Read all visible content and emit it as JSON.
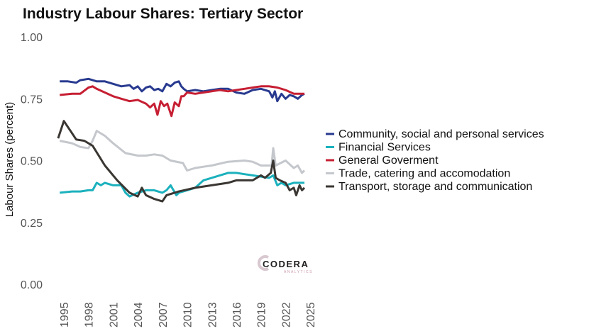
{
  "chart_data": {
    "type": "line",
    "title": "Industry Labour Shares: Tertiary Sector",
    "xlabel": "",
    "ylabel": "Labour Shares (percent)",
    "xlim": [
      1994,
      2025
    ],
    "ylim": [
      0,
      1
    ],
    "xticks": [
      "1995",
      "1998",
      "2001",
      "2004",
      "2007",
      "2010",
      "2013",
      "2016",
      "2019",
      "2022",
      "2025"
    ],
    "yticks": [
      "0.00",
      "0.25",
      "0.50",
      "0.75",
      "1.00"
    ],
    "grid": false,
    "legend_position": "right",
    "logo": "CODERA ANALYTICS",
    "series": [
      {
        "name": "Community, social and personal services",
        "color": "#283a8f",
        "x": [
          1994.5,
          1995.5,
          1996.5,
          1997,
          1998,
          1999,
          2000,
          2001,
          2002,
          2003,
          2003.5,
          2004,
          2004.5,
          2005,
          2005.5,
          2006,
          2006.5,
          2007,
          2007.5,
          2008,
          2008.5,
          2009,
          2009.3,
          2009.6,
          2010,
          2011,
          2012,
          2013,
          2014,
          2015,
          2016,
          2017,
          2018,
          2019,
          2020,
          2020.4,
          2020.7,
          2021,
          2021.5,
          2022,
          2022.5,
          2023,
          2023.5,
          2024,
          2024.3
        ],
        "y": [
          0.82,
          0.82,
          0.815,
          0.825,
          0.83,
          0.82,
          0.82,
          0.81,
          0.8,
          0.805,
          0.79,
          0.8,
          0.78,
          0.795,
          0.8,
          0.785,
          0.79,
          0.78,
          0.81,
          0.8,
          0.815,
          0.82,
          0.8,
          0.79,
          0.78,
          0.785,
          0.78,
          0.785,
          0.79,
          0.79,
          0.775,
          0.77,
          0.785,
          0.79,
          0.78,
          0.755,
          0.78,
          0.74,
          0.77,
          0.75,
          0.765,
          0.76,
          0.75,
          0.765,
          0.77
        ]
      },
      {
        "name": "Financial Services",
        "color": "#1bb1bd",
        "x": [
          1994.5,
          1996,
          1997,
          1998,
          1998.5,
          1999,
          1999.5,
          2000,
          2001,
          2002,
          2002.5,
          2003,
          2004,
          2005,
          2006,
          2007,
          2007.5,
          2008,
          2008.7,
          2009,
          2010,
          2011,
          2012,
          2013,
          2014,
          2015,
          2016,
          2017,
          2018,
          2019,
          2020,
          2020.5,
          2021,
          2021.5,
          2022,
          2023,
          2024,
          2024.3
        ],
        "y": [
          0.37,
          0.375,
          0.375,
          0.38,
          0.38,
          0.41,
          0.4,
          0.41,
          0.4,
          0.4,
          0.37,
          0.355,
          0.37,
          0.38,
          0.38,
          0.37,
          0.38,
          0.4,
          0.36,
          0.37,
          0.38,
          0.39,
          0.42,
          0.43,
          0.44,
          0.45,
          0.45,
          0.445,
          0.44,
          0.435,
          0.43,
          0.44,
          0.4,
          0.41,
          0.4,
          0.41,
          0.41,
          0.41
        ]
      },
      {
        "name": "General Goverment",
        "color": "#c61f33",
        "x": [
          1994.5,
          1996,
          1997,
          1998,
          1998.5,
          1999,
          2000,
          2001,
          2002,
          2003,
          2004,
          2005,
          2005.5,
          2006,
          2006.4,
          2006.8,
          2007.2,
          2007.6,
          2008.1,
          2008.5,
          2009,
          2009.3,
          2009.6,
          2010,
          2011,
          2012,
          2013,
          2014,
          2015,
          2016,
          2017,
          2018,
          2019,
          2020,
          2021,
          2022,
          2023,
          2024,
          2024.3
        ],
        "y": [
          0.765,
          0.77,
          0.77,
          0.795,
          0.8,
          0.79,
          0.775,
          0.76,
          0.75,
          0.74,
          0.745,
          0.73,
          0.715,
          0.73,
          0.685,
          0.74,
          0.72,
          0.73,
          0.68,
          0.735,
          0.72,
          0.76,
          0.76,
          0.775,
          0.77,
          0.775,
          0.78,
          0.785,
          0.78,
          0.785,
          0.79,
          0.795,
          0.8,
          0.8,
          0.795,
          0.785,
          0.77,
          0.77,
          0.77
        ]
      },
      {
        "name": "Trade, catering and accomodation",
        "color": "#c4c7cc",
        "x": [
          1994.5,
          1996,
          1997,
          1998,
          1998.5,
          1999,
          2000,
          2001,
          2002.5,
          2004,
          2005,
          2006,
          2007,
          2008,
          2009.5,
          2010,
          2011,
          2012,
          2013,
          2015,
          2017,
          2018,
          2019,
          2020.3,
          2020.5,
          2020.8,
          2022,
          2023,
          2023.5,
          2024,
          2024.3
        ],
        "y": [
          0.58,
          0.57,
          0.555,
          0.55,
          0.58,
          0.62,
          0.6,
          0.57,
          0.53,
          0.52,
          0.52,
          0.525,
          0.52,
          0.5,
          0.49,
          0.46,
          0.47,
          0.475,
          0.48,
          0.495,
          0.5,
          0.495,
          0.48,
          0.48,
          0.55,
          0.48,
          0.5,
          0.47,
          0.48,
          0.45,
          0.46
        ]
      },
      {
        "name": "Transport, storage and communication",
        "color": "#3a3632",
        "x": [
          1994.3,
          1995,
          1996,
          1996.5,
          1997.5,
          1998.5,
          2000,
          2001.5,
          2003,
          2004,
          2004.5,
          2005,
          2006,
          2007,
          2007.5,
          2009,
          2011,
          2013,
          2015,
          2016,
          2018,
          2019,
          2019.5,
          2020.2,
          2020.5,
          2020.8,
          2021.3,
          2022,
          2022.5,
          2023,
          2023.3,
          2023.7,
          2024,
          2024.3
        ],
        "y": [
          0.59,
          0.66,
          0.61,
          0.585,
          0.58,
          0.56,
          0.48,
          0.42,
          0.37,
          0.355,
          0.39,
          0.36,
          0.345,
          0.335,
          0.36,
          0.375,
          0.39,
          0.4,
          0.41,
          0.42,
          0.42,
          0.44,
          0.43,
          0.45,
          0.5,
          0.43,
          0.42,
          0.41,
          0.38,
          0.39,
          0.36,
          0.4,
          0.38,
          0.39
        ]
      }
    ]
  }
}
